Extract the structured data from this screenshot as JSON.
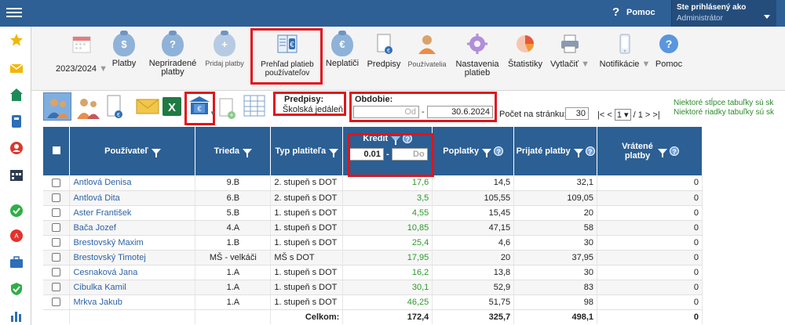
{
  "header": {
    "help_label": "Pomoc",
    "user_line1": "Ste prihlásený ako",
    "user_line2": "Administrátor"
  },
  "sidebar": {
    "icons": [
      "star-icon",
      "mail-icon",
      "home-icon",
      "book-icon",
      "person-icon",
      "calendar-icon",
      "check-icon",
      "badge-icon",
      "briefcase-icon",
      "shield-icon",
      "chart-icon"
    ],
    "accent": "#2e5f95"
  },
  "toolbar": {
    "year": "2023/2024",
    "items": [
      {
        "label": "Platby"
      },
      {
        "label": "Nepriradené platby"
      },
      {
        "label": "Pridaj platby"
      },
      {
        "label": "Prehľad platieb používateľov"
      },
      {
        "label": "Neplatiči"
      },
      {
        "label": "Predpisy"
      },
      {
        "label": "Používatelia"
      },
      {
        "label": "Nastavenia platieb"
      },
      {
        "label": "Štatistiky"
      },
      {
        "label": "Vytlačiť"
      },
      {
        "label": "Notifikácie"
      },
      {
        "label": "Pomoc"
      }
    ]
  },
  "filters": {
    "predpisy_label": "Predpisy:",
    "predpisy_value": "Školská jedáleň",
    "obdobie_label": "Obdobie:",
    "od_placeholder": "Od",
    "do_value": "30.6.2024",
    "pocet_label": "Počet na stránku:",
    "pocet_value": "30",
    "pager_first": "|<",
    "pager_prev": "<",
    "page_current": "1",
    "page_total": "/ 1",
    "pager_next": ">",
    "pager_last": ">|",
    "note1": "Niektoré stĺpce tabuľky sú sk",
    "note2": "Niektoré riadky tabuľky sú sk"
  },
  "table": {
    "columns": {
      "user": "Používateľ",
      "class": "Trieda",
      "payer_type": "Typ platiteľa",
      "credit": "Kredit",
      "fees": "Poplatky",
      "received": "Prijaté platby",
      "returned": "Vrátené platby"
    },
    "credit_from": "0.01",
    "credit_to_placeholder": "Do",
    "rows": [
      {
        "name": "Antlová Denisa",
        "class": "9.B",
        "type": "2. stupeň s DOT",
        "credit": "17,6",
        "fees": "14,5",
        "received": "32,1",
        "returned": "0"
      },
      {
        "name": "Antlová Dita",
        "class": "6.B",
        "type": "2. stupeň s DOT",
        "credit": "3,5",
        "fees": "105,55",
        "received": "109,05",
        "returned": "0"
      },
      {
        "name": "Aster František",
        "class": "5.B",
        "type": "1. stupeň s DOT",
        "credit": "4,55",
        "fees": "15,45",
        "received": "20",
        "returned": "0"
      },
      {
        "name": "Bača Jozef",
        "class": "4.A",
        "type": "1. stupeň s DOT",
        "credit": "10,85",
        "fees": "47,15",
        "received": "58",
        "returned": "0"
      },
      {
        "name": "Brestovský Maxim",
        "class": "1.B",
        "type": "1. stupeň s DOT",
        "credit": "25,4",
        "fees": "4,6",
        "received": "30",
        "returned": "0"
      },
      {
        "name": "Brestovský Timotej",
        "class": "MŠ - velkáči",
        "type": "MŠ s DOT",
        "credit": "17,95",
        "fees": "20",
        "received": "37,95",
        "returned": "0"
      },
      {
        "name": "Cesnaková Jana",
        "class": "1.A",
        "type": "1. stupeň s DOT",
        "credit": "16,2",
        "fees": "13,8",
        "received": "30",
        "returned": "0"
      },
      {
        "name": "Cibulka Kamil",
        "class": "1.A",
        "type": "1. stupeň s DOT",
        "credit": "30,1",
        "fees": "52,9",
        "received": "83",
        "returned": "0"
      },
      {
        "name": "Mrkva Jakub",
        "class": "1.A",
        "type": "1. stupeň s DOT",
        "credit": "46,25",
        "fees": "51,75",
        "received": "98",
        "returned": "0"
      }
    ],
    "total_label": "Celkom:",
    "totals": {
      "credit": "172,4",
      "fees": "325,7",
      "received": "498,1",
      "returned": "0"
    }
  }
}
